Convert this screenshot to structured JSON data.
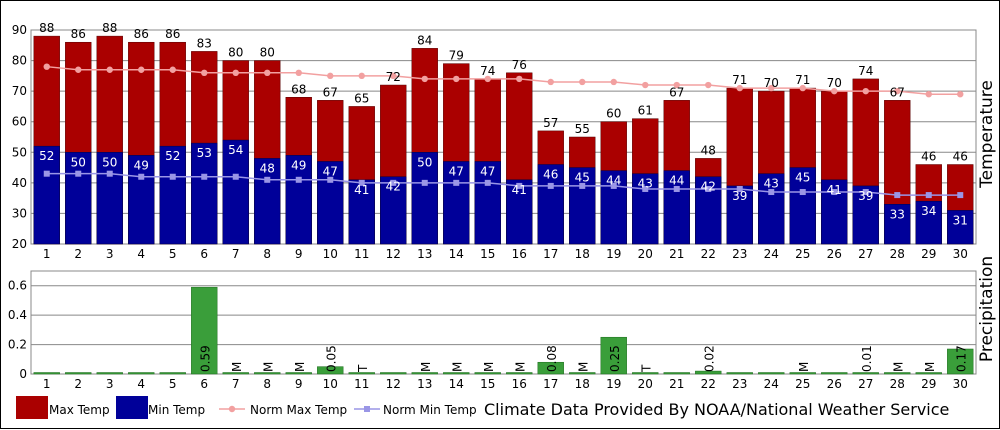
{
  "chart_data": [
    {
      "type": "bar",
      "name_hint": "temperature",
      "ylabel": "Temperature",
      "ylim": [
        20,
        90
      ],
      "yticks": [
        20,
        30,
        40,
        50,
        60,
        70,
        80,
        90
      ],
      "categories": [
        "1",
        "2",
        "3",
        "4",
        "5",
        "6",
        "7",
        "8",
        "9",
        "10",
        "11",
        "12",
        "13",
        "14",
        "15",
        "16",
        "17",
        "18",
        "19",
        "20",
        "21",
        "22",
        "23",
        "24",
        "25",
        "26",
        "27",
        "28",
        "29",
        "30"
      ],
      "series": [
        {
          "name": "Max Temp",
          "type": "bar",
          "color": "#aa0000",
          "values": [
            88,
            86,
            88,
            86,
            86,
            83,
            80,
            80,
            68,
            67,
            65,
            72,
            84,
            79,
            74,
            76,
            57,
            55,
            60,
            61,
            67,
            48,
            71,
            70,
            71,
            70,
            74,
            67,
            46,
            46
          ]
        },
        {
          "name": "Min Temp",
          "type": "bar",
          "color": "#000099",
          "values": [
            52,
            50,
            50,
            49,
            52,
            53,
            54,
            48,
            49,
            47,
            41,
            42,
            50,
            47,
            47,
            41,
            46,
            45,
            44,
            43,
            44,
            42,
            39,
            43,
            45,
            41,
            39,
            33,
            34,
            31
          ]
        },
        {
          "name": "Norm Max Temp",
          "type": "line",
          "color": "#f2a0a0",
          "values": [
            78,
            77,
            77,
            77,
            77,
            76,
            76,
            76,
            76,
            75,
            75,
            75,
            74,
            74,
            74,
            74,
            73,
            73,
            73,
            72,
            72,
            72,
            71,
            71,
            71,
            70,
            70,
            70,
            69,
            69
          ]
        },
        {
          "name": "Norm Min Temp",
          "type": "line",
          "color": "#9a96e6",
          "values": [
            43,
            43,
            43,
            42,
            42,
            42,
            42,
            41,
            41,
            41,
            40,
            40,
            40,
            40,
            40,
            39,
            39,
            39,
            39,
            38,
            38,
            38,
            38,
            37,
            37,
            37,
            37,
            36,
            36,
            36
          ]
        }
      ],
      "grid": true
    },
    {
      "type": "bar",
      "name_hint": "precipitation",
      "ylabel": "Precipitation",
      "ylim": [
        0,
        0.7
      ],
      "yticks": [
        "0",
        "0.2",
        "0.4",
        "0.6"
      ],
      "categories": [
        "1",
        "2",
        "3",
        "4",
        "5",
        "6",
        "7",
        "8",
        "9",
        "10",
        "11",
        "12",
        "13",
        "14",
        "15",
        "16",
        "17",
        "18",
        "19",
        "20",
        "21",
        "22",
        "23",
        "24",
        "25",
        "26",
        "27",
        "28",
        "29",
        "30"
      ],
      "series": [
        {
          "name": "Precipitation",
          "type": "bar",
          "color": "#3a9e3a",
          "values": [
            0,
            0,
            0,
            0,
            0,
            0.59,
            0,
            0,
            0,
            0.05,
            0,
            0,
            0,
            0,
            0,
            0,
            0.08,
            0,
            0.25,
            0,
            0,
            0.02,
            0,
            0,
            0,
            0,
            0.01,
            0,
            0,
            0.17
          ]
        }
      ],
      "labels": [
        "",
        "",
        "",
        "",
        "",
        "0.59",
        "M",
        "M",
        "M",
        "0.05",
        "T",
        "",
        "M",
        "M",
        "M",
        "M",
        "0.08",
        "M",
        "0.25",
        "T",
        "",
        "0.02",
        "",
        "",
        "M",
        "",
        "0.01",
        "M",
        "M",
        "0.17"
      ],
      "grid": true
    }
  ],
  "legend": {
    "items": [
      {
        "label": "Max Temp",
        "kind": "box",
        "color": "#aa0000"
      },
      {
        "label": "Min Temp",
        "kind": "box",
        "color": "#000099"
      },
      {
        "label": "Norm Max Temp",
        "kind": "line-circle",
        "color": "#f2a0a0"
      },
      {
        "label": "Norm Min Temp",
        "kind": "line-square",
        "color": "#9a96e6"
      }
    ],
    "credit": "Climate Data Provided By NOAA/National Weather Service"
  }
}
